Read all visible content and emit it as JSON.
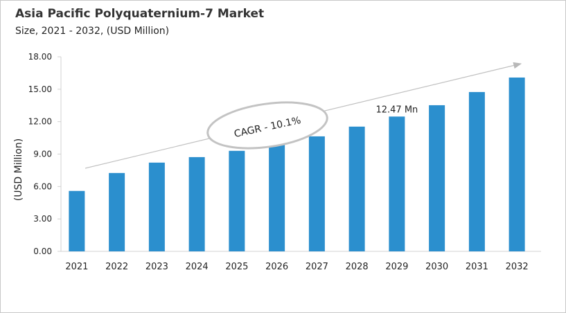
{
  "chart_data": {
    "type": "bar",
    "title": "Asia Pacific Polyquaternium-7 Market",
    "subtitle": "Size, 2021 - 2032, (USD Million)",
    "ylabel": "(USD Million)",
    "xlabel": "",
    "categories": [
      "2021",
      "2022",
      "2023",
      "2024",
      "2025",
      "2026",
      "2027",
      "2028",
      "2029",
      "2030",
      "2031",
      "2032"
    ],
    "values": [
      5.59,
      7.25,
      8.21,
      8.72,
      9.3,
      9.94,
      10.64,
      11.54,
      12.47,
      13.52,
      14.74,
      16.08
    ],
    "ylim": [
      0,
      18
    ],
    "yticks": [
      "0.00",
      "3.00",
      "6.00",
      "9.00",
      "12.00",
      "15.00",
      "18.00"
    ],
    "grid": false,
    "bar_color": "#2b8fce",
    "annotations": {
      "cagr": "CAGR - 10.1%",
      "value_label": "12.47 Mn",
      "value_label_category": "2029"
    }
  }
}
